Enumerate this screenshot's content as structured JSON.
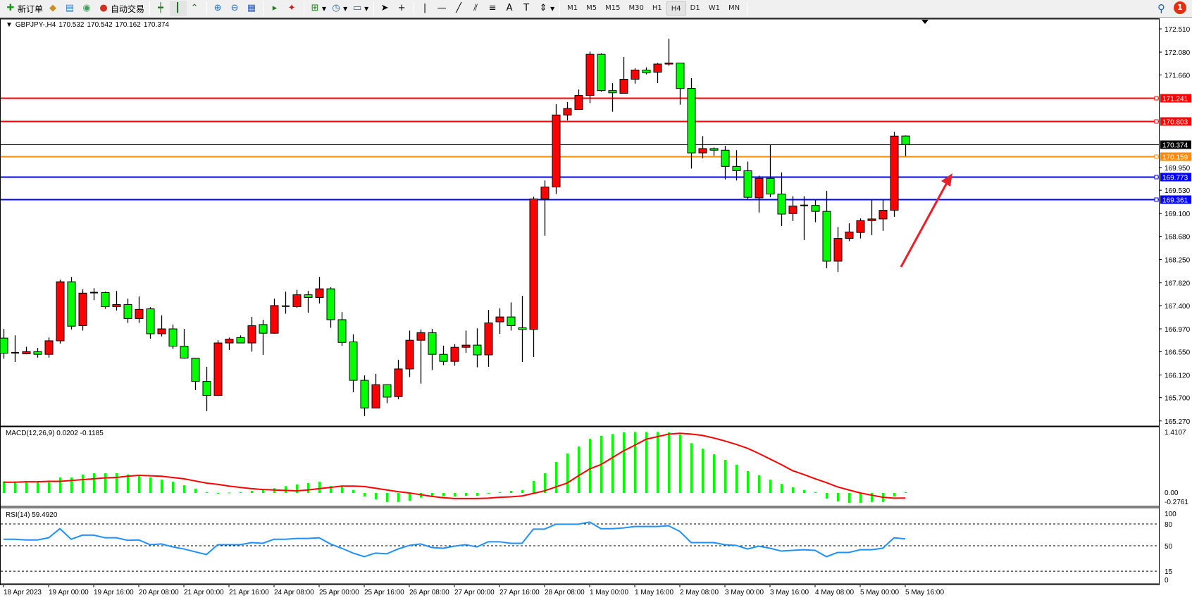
{
  "toolbar": {
    "new_order": "新订单",
    "auto_trading": "自动交易",
    "timeframes": [
      "M1",
      "M5",
      "M15",
      "M30",
      "H1",
      "H4",
      "D1",
      "W1",
      "MN"
    ],
    "active_timeframe": "H4",
    "notification_count": "1",
    "icons": [
      "new-order-icon",
      "market-watch-icon",
      "navigator-icon",
      "signals-icon",
      "auto-trading-icon",
      "bar-chart-icon",
      "candlestick-icon",
      "line-chart-icon",
      "zoom-in-icon",
      "zoom-out-icon",
      "tile-windows-icon",
      "chart-shift-icon",
      "autoscroll-icon",
      "indicators-icon",
      "periods-icon",
      "templates-icon",
      "cursor-icon",
      "crosshair-icon",
      "vertical-line-icon",
      "horizontal-line-icon",
      "trendline-icon",
      "equidistant-channel-icon",
      "fibonacci-icon",
      "text-icon",
      "text-label-icon",
      "arrows-icon",
      "search-icon",
      "notification-icon"
    ]
  },
  "chart": {
    "symbol": "GBPJPY-,H4",
    "ohlc": [
      "170.532",
      "170.542",
      "170.162",
      "170.374"
    ],
    "colors": {
      "bull": "#ff0000",
      "bear": "#00ff00",
      "red_level": "#ff0000",
      "orange_level": "#ff8c00",
      "blue_level": "#0000ff",
      "bid": "#000000",
      "arrow": "#e8202a"
    },
    "price_ticks": [
      "172.510",
      "172.080",
      "171.660",
      "169.950",
      "169.530",
      "169.100",
      "168.680",
      "168.250",
      "167.820",
      "167.400",
      "166.970",
      "166.550",
      "166.120",
      "165.700",
      "165.270"
    ],
    "levels": [
      {
        "price": "171.241",
        "color": "#ff0000"
      },
      {
        "price": "170.803",
        "color": "#ff0000"
      },
      {
        "price": "170.374",
        "color": "#000000"
      },
      {
        "price": "170.159",
        "color": "#ff8c00"
      },
      {
        "price": "169.773",
        "color": "#0000ff"
      },
      {
        "price": "169.361",
        "color": "#0000ff"
      }
    ],
    "time_labels": [
      "18 Apr 2023",
      "19 Apr 00:00",
      "19 Apr 16:00",
      "20 Apr 08:00",
      "21 Apr 00:00",
      "21 Apr 16:00",
      "24 Apr 08:00",
      "25 Apr 00:00",
      "25 Apr 16:00",
      "26 Apr 08:00",
      "27 Apr 00:00",
      "27 Apr 16:00",
      "28 Apr 08:00",
      "1 May 00:00",
      "1 May 16:00",
      "2 May 08:00",
      "3 May 00:00",
      "3 May 16:00",
      "4 May 08:00",
      "5 May 00:00",
      "5 May 16:00"
    ]
  },
  "chart_data": [
    {
      "type": "candlestick",
      "ylim": [
        165.27,
        172.51
      ],
      "candles": [
        [
          166.8,
          166.97,
          166.42,
          166.52
        ],
        [
          166.53,
          166.85,
          166.36,
          166.53
        ],
        [
          166.51,
          166.64,
          166.5,
          166.55
        ],
        [
          166.55,
          166.62,
          166.44,
          166.5
        ],
        [
          166.5,
          166.81,
          166.44,
          166.75
        ],
        [
          166.75,
          167.88,
          166.7,
          167.84
        ],
        [
          167.84,
          167.93,
          166.96,
          167.02
        ],
        [
          167.03,
          167.7,
          166.94,
          167.63
        ],
        [
          167.64,
          167.72,
          167.5,
          167.64
        ],
        [
          167.64,
          167.66,
          167.34,
          167.38
        ],
        [
          167.38,
          167.67,
          167.31,
          167.42
        ],
        [
          167.42,
          167.53,
          167.08,
          167.16
        ],
        [
          167.16,
          167.57,
          167.08,
          167.33
        ],
        [
          167.34,
          167.37,
          166.79,
          166.88
        ],
        [
          166.88,
          167.22,
          166.83,
          166.97
        ],
        [
          166.97,
          167.05,
          166.6,
          166.65
        ],
        [
          166.65,
          166.97,
          166.42,
          166.43
        ],
        [
          166.43,
          166.43,
          165.84,
          166.0
        ],
        [
          166.0,
          166.27,
          165.45,
          165.74
        ],
        [
          165.74,
          166.76,
          165.73,
          166.71
        ],
        [
          166.71,
          166.81,
          166.58,
          166.78
        ],
        [
          166.81,
          166.85,
          166.71,
          166.71
        ],
        [
          166.71,
          167.19,
          166.55,
          167.03
        ],
        [
          167.05,
          167.14,
          166.49,
          166.89
        ],
        [
          166.89,
          167.53,
          166.88,
          167.4
        ],
        [
          167.39,
          167.66,
          167.25,
          167.39
        ],
        [
          167.38,
          167.69,
          167.36,
          167.6
        ],
        [
          167.6,
          167.67,
          167.27,
          167.55
        ],
        [
          167.55,
          167.93,
          167.44,
          167.71
        ],
        [
          167.71,
          167.74,
          166.99,
          167.14
        ],
        [
          167.14,
          167.28,
          166.66,
          166.72
        ],
        [
          166.73,
          166.87,
          165.8,
          166.02
        ],
        [
          166.02,
          166.11,
          165.36,
          165.51
        ],
        [
          165.51,
          166.14,
          165.51,
          165.94
        ],
        [
          165.94,
          165.94,
          165.6,
          165.71
        ],
        [
          165.72,
          166.4,
          165.67,
          166.23
        ],
        [
          166.23,
          166.94,
          166.08,
          166.76
        ],
        [
          166.76,
          166.96,
          165.96,
          166.9
        ],
        [
          166.9,
          166.97,
          166.21,
          166.5
        ],
        [
          166.5,
          166.66,
          166.3,
          166.37
        ],
        [
          166.37,
          166.69,
          166.29,
          166.63
        ],
        [
          166.63,
          166.94,
          166.53,
          166.67
        ],
        [
          166.67,
          166.98,
          166.26,
          166.49
        ],
        [
          166.49,
          167.32,
          166.27,
          167.08
        ],
        [
          167.1,
          167.35,
          166.88,
          167.19
        ],
        [
          167.19,
          167.46,
          166.94,
          167.03
        ],
        [
          166.99,
          167.58,
          166.36,
          166.96
        ],
        [
          166.96,
          169.41,
          166.45,
          169.37
        ],
        [
          169.37,
          169.71,
          168.69,
          169.59
        ],
        [
          169.59,
          171.12,
          169.46,
          170.92
        ],
        [
          170.92,
          171.16,
          170.82,
          171.04
        ],
        [
          171.02,
          171.39,
          171.02,
          171.28
        ],
        [
          171.28,
          172.09,
          171.14,
          172.04
        ],
        [
          172.04,
          172.06,
          171.35,
          171.37
        ],
        [
          171.37,
          171.51,
          170.98,
          171.33
        ],
        [
          171.32,
          171.99,
          171.32,
          171.58
        ],
        [
          171.58,
          171.78,
          171.5,
          171.75
        ],
        [
          171.75,
          171.8,
          171.67,
          171.7
        ],
        [
          171.71,
          171.88,
          171.51,
          171.86
        ],
        [
          171.86,
          172.33,
          171.83,
          171.88
        ],
        [
          171.88,
          171.88,
          171.11,
          171.41
        ],
        [
          171.41,
          171.6,
          169.93,
          170.22
        ],
        [
          170.22,
          170.53,
          170.12,
          170.3
        ],
        [
          170.3,
          170.32,
          170.17,
          170.27
        ],
        [
          170.27,
          170.35,
          169.73,
          169.97
        ],
        [
          169.97,
          170.27,
          169.71,
          169.89
        ],
        [
          169.89,
          170.06,
          169.37,
          169.4
        ],
        [
          169.39,
          169.8,
          169.12,
          169.75
        ],
        [
          169.75,
          170.37,
          169.4,
          169.46
        ],
        [
          169.46,
          169.86,
          168.87,
          169.09
        ],
        [
          169.1,
          169.42,
          168.96,
          169.24
        ],
        [
          169.25,
          169.42,
          168.61,
          169.25
        ],
        [
          169.25,
          169.35,
          168.94,
          169.14
        ],
        [
          169.14,
          169.52,
          168.09,
          168.22
        ],
        [
          168.22,
          168.85,
          168.02,
          168.64
        ],
        [
          168.64,
          168.92,
          168.59,
          168.76
        ],
        [
          168.75,
          169.01,
          168.64,
          168.97
        ],
        [
          168.97,
          169.35,
          168.7,
          169.0
        ],
        [
          169.0,
          169.35,
          168.78,
          169.16
        ],
        [
          169.16,
          170.61,
          169.04,
          170.53
        ],
        [
          170.532,
          170.542,
          170.162,
          170.374
        ]
      ]
    },
    {
      "type": "bar+line",
      "title": "MACD(12,26,9) 0.0202 -0.1185",
      "ylim": [
        -0.2761,
        1.4107
      ],
      "y_ticks": [
        "1.4107",
        "0.00",
        "-0.2761"
      ],
      "macd": [
        0.27,
        0.27,
        0.25,
        0.25,
        0.25,
        0.36,
        0.36,
        0.43,
        0.46,
        0.46,
        0.46,
        0.43,
        0.39,
        0.36,
        0.31,
        0.26,
        0.18,
        0.1,
        0.02,
        0.0,
        0.01,
        0.02,
        0.05,
        0.08,
        0.11,
        0.16,
        0.2,
        0.23,
        0.26,
        0.16,
        0.15,
        0.07,
        -0.08,
        -0.15,
        -0.21,
        -0.21,
        -0.18,
        -0.11,
        -0.08,
        -0.08,
        -0.08,
        -0.07,
        -0.07,
        -0.01,
        0.02,
        0.05,
        0.07,
        0.28,
        0.46,
        0.72,
        0.92,
        1.08,
        1.26,
        1.33,
        1.37,
        1.41,
        1.42,
        1.42,
        1.42,
        1.41,
        1.36,
        1.16,
        1.03,
        0.9,
        0.77,
        0.66,
        0.51,
        0.41,
        0.31,
        0.21,
        0.13,
        0.07,
        0.02,
        -0.13,
        -0.2,
        -0.23,
        -0.23,
        -0.21,
        -0.21,
        -0.08,
        0.0202
      ],
      "signal": [
        0.25,
        0.25,
        0.26,
        0.26,
        0.27,
        0.27,
        0.29,
        0.31,
        0.33,
        0.35,
        0.36,
        0.39,
        0.41,
        0.4,
        0.39,
        0.36,
        0.33,
        0.28,
        0.23,
        0.2,
        0.16,
        0.13,
        0.1,
        0.08,
        0.07,
        0.06,
        0.05,
        0.07,
        0.1,
        0.13,
        0.16,
        0.16,
        0.15,
        0.11,
        0.07,
        0.03,
        0.0,
        -0.04,
        -0.08,
        -0.11,
        -0.13,
        -0.13,
        -0.13,
        -0.12,
        -0.1,
        -0.09,
        -0.07,
        -0.01,
        0.05,
        0.14,
        0.23,
        0.4,
        0.56,
        0.66,
        0.82,
        0.98,
        1.11,
        1.25,
        1.31,
        1.37,
        1.39,
        1.37,
        1.34,
        1.28,
        1.21,
        1.13,
        1.04,
        0.92,
        0.79,
        0.66,
        0.52,
        0.43,
        0.33,
        0.24,
        0.14,
        0.07,
        0.0,
        -0.05,
        -0.1,
        -0.12,
        -0.1185
      ]
    },
    {
      "type": "line",
      "title": "RSI(14) 59.4920",
      "ylim": [
        0,
        100
      ],
      "y_ticks": [
        "100",
        "80",
        "50",
        "15",
        "0"
      ],
      "levels": [
        80,
        50,
        15
      ],
      "rsi": [
        59,
        59,
        58,
        58,
        61,
        73.5,
        59,
        64.6,
        64.6,
        61,
        61,
        57.5,
        58,
        51.5,
        52.5,
        48.5,
        45.6,
        41.7,
        37.9,
        51.5,
        51.5,
        51.5,
        54.4,
        53.4,
        59,
        59,
        60,
        60,
        61,
        52.5,
        46.6,
        40,
        35,
        40,
        39,
        45.6,
        50.5,
        52.5,
        47.6,
        46.6,
        49.5,
        51.5,
        48.5,
        55.5,
        55.5,
        53.4,
        53.4,
        72.9,
        72.9,
        79.7,
        79.7,
        79.7,
        82.6,
        73.5,
        73.5,
        74.5,
        76.5,
        76.5,
        76.5,
        77.5,
        69.7,
        54.4,
        54.4,
        54.4,
        51.5,
        50.5,
        45.6,
        49.5,
        46.6,
        42.7,
        43.7,
        44.6,
        43.7,
        35,
        40.8,
        40.8,
        44.6,
        44.6,
        46.6,
        61,
        59.492
      ]
    }
  ]
}
